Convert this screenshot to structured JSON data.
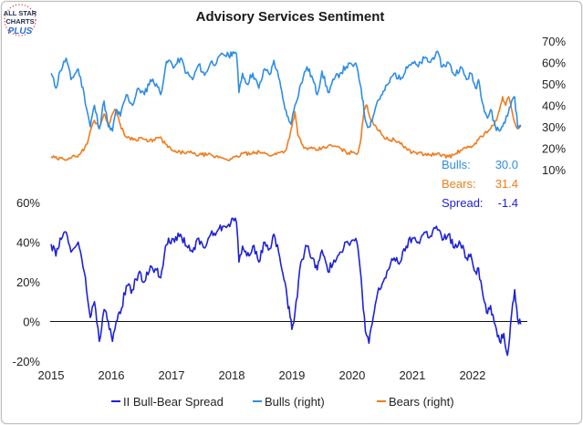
{
  "logo": {
    "line1": "ALL STAR",
    "line2": "CHARTS",
    "line3": "PLUS",
    "color_dark": "#1b2a4a",
    "color_accent": "#e0323c",
    "color_plus": "#2d6fd6"
  },
  "chart_data": {
    "type": "line",
    "title": "Advisory Services Sentiment",
    "colors": {
      "spread": "#1e22d6",
      "bulls": "#2e8de4",
      "bears": "#f07c1c"
    },
    "x_ticks": [
      "2015",
      "2016",
      "2017",
      "2018",
      "2019",
      "2020",
      "2021",
      "2022"
    ],
    "top_panel": {
      "axis": "right",
      "ylim": [
        10,
        70
      ],
      "y_ticks": [
        "70%",
        "60%",
        "50%",
        "40%",
        "30%",
        "20%",
        "10%"
      ],
      "bulls_anchor_points": [
        [
          2015.0,
          55
        ],
        [
          2015.08,
          48
        ],
        [
          2015.15,
          56
        ],
        [
          2015.25,
          62
        ],
        [
          2015.33,
          52
        ],
        [
          2015.45,
          57
        ],
        [
          2015.55,
          45
        ],
        [
          2015.65,
          30
        ],
        [
          2015.72,
          40
        ],
        [
          2015.8,
          29
        ],
        [
          2015.88,
          42
        ],
        [
          2015.95,
          30
        ],
        [
          2016.02,
          28
        ],
        [
          2016.08,
          38
        ],
        [
          2016.15,
          35
        ],
        [
          2016.25,
          45
        ],
        [
          2016.35,
          40
        ],
        [
          2016.45,
          48
        ],
        [
          2016.55,
          45
        ],
        [
          2016.65,
          52
        ],
        [
          2016.75,
          50
        ],
        [
          2016.82,
          45
        ],
        [
          2016.9,
          58
        ],
        [
          2016.95,
          61
        ],
        [
          2017.05,
          58
        ],
        [
          2017.15,
          62
        ],
        [
          2017.25,
          55
        ],
        [
          2017.35,
          52
        ],
        [
          2017.45,
          59
        ],
        [
          2017.55,
          54
        ],
        [
          2017.65,
          60
        ],
        [
          2017.75,
          60
        ],
        [
          2017.85,
          64
        ],
        [
          2017.95,
          63
        ],
        [
          2018.02,
          65
        ],
        [
          2018.08,
          64
        ],
        [
          2018.12,
          46
        ],
        [
          2018.18,
          55
        ],
        [
          2018.25,
          50
        ],
        [
          2018.35,
          55
        ],
        [
          2018.45,
          48
        ],
        [
          2018.55,
          57
        ],
        [
          2018.65,
          55
        ],
        [
          2018.7,
          61
        ],
        [
          2018.78,
          53
        ],
        [
          2018.85,
          43
        ],
        [
          2018.92,
          35
        ],
        [
          2018.97,
          32
        ],
        [
          2019.0,
          33
        ],
        [
          2019.05,
          40
        ],
        [
          2019.15,
          50
        ],
        [
          2019.25,
          58
        ],
        [
          2019.35,
          52
        ],
        [
          2019.42,
          45
        ],
        [
          2019.5,
          56
        ],
        [
          2019.6,
          46
        ],
        [
          2019.7,
          52
        ],
        [
          2019.8,
          55
        ],
        [
          2019.9,
          58
        ],
        [
          2020.0,
          59
        ],
        [
          2020.08,
          58
        ],
        [
          2020.15,
          48
        ],
        [
          2020.22,
          33
        ],
        [
          2020.28,
          30
        ],
        [
          2020.35,
          35
        ],
        [
          2020.42,
          42
        ],
        [
          2020.5,
          45
        ],
        [
          2020.6,
          50
        ],
        [
          2020.7,
          55
        ],
        [
          2020.8,
          52
        ],
        [
          2020.9,
          58
        ],
        [
          2021.0,
          60
        ],
        [
          2021.1,
          58
        ],
        [
          2021.2,
          62
        ],
        [
          2021.3,
          60
        ],
        [
          2021.4,
          65
        ],
        [
          2021.5,
          58
        ],
        [
          2021.6,
          60
        ],
        [
          2021.7,
          54
        ],
        [
          2021.8,
          58
        ],
        [
          2021.9,
          52
        ],
        [
          2021.97,
          55
        ],
        [
          2022.05,
          48
        ],
        [
          2022.1,
          52
        ],
        [
          2022.18,
          40
        ],
        [
          2022.25,
          34
        ],
        [
          2022.3,
          38
        ],
        [
          2022.38,
          30
        ],
        [
          2022.45,
          28
        ],
        [
          2022.52,
          32
        ],
        [
          2022.58,
          35
        ],
        [
          2022.65,
          42
        ],
        [
          2022.7,
          44
        ],
        [
          2022.75,
          30
        ],
        [
          2022.8,
          30
        ]
      ],
      "bears_anchor_points": [
        [
          2015.0,
          16
        ],
        [
          2015.1,
          15
        ],
        [
          2015.2,
          15
        ],
        [
          2015.3,
          15.5
        ],
        [
          2015.4,
          16
        ],
        [
          2015.5,
          18
        ],
        [
          2015.6,
          22
        ],
        [
          2015.65,
          28
        ],
        [
          2015.72,
          33
        ],
        [
          2015.8,
          30
        ],
        [
          2015.88,
          36
        ],
        [
          2015.95,
          31
        ],
        [
          2016.02,
          36
        ],
        [
          2016.08,
          38
        ],
        [
          2016.15,
          31
        ],
        [
          2016.22,
          26
        ],
        [
          2016.3,
          25
        ],
        [
          2016.4,
          24
        ],
        [
          2016.5,
          25
        ],
        [
          2016.6,
          23
        ],
        [
          2016.7,
          24
        ],
        [
          2016.8,
          25
        ],
        [
          2016.9,
          22
        ],
        [
          2017.0,
          19
        ],
        [
          2017.1,
          18
        ],
        [
          2017.2,
          18
        ],
        [
          2017.3,
          18
        ],
        [
          2017.4,
          17
        ],
        [
          2017.5,
          17
        ],
        [
          2017.6,
          17
        ],
        [
          2017.7,
          16
        ],
        [
          2017.8,
          16
        ],
        [
          2017.9,
          15
        ],
        [
          2018.0,
          15
        ],
        [
          2018.1,
          16
        ],
        [
          2018.2,
          18
        ],
        [
          2018.3,
          17
        ],
        [
          2018.4,
          18
        ],
        [
          2018.5,
          18
        ],
        [
          2018.6,
          17
        ],
        [
          2018.7,
          17
        ],
        [
          2018.8,
          18
        ],
        [
          2018.9,
          19
        ],
        [
          2019.0,
          30
        ],
        [
          2019.05,
          37
        ],
        [
          2019.1,
          26
        ],
        [
          2019.2,
          20
        ],
        [
          2019.3,
          20
        ],
        [
          2019.4,
          19
        ],
        [
          2019.5,
          20
        ],
        [
          2019.6,
          21
        ],
        [
          2019.7,
          21
        ],
        [
          2019.8,
          20
        ],
        [
          2019.9,
          18
        ],
        [
          2020.0,
          18
        ],
        [
          2020.1,
          18
        ],
        [
          2020.15,
          25
        ],
        [
          2020.2,
          38
        ],
        [
          2020.25,
          40
        ],
        [
          2020.3,
          34
        ],
        [
          2020.4,
          30
        ],
        [
          2020.5,
          26
        ],
        [
          2020.6,
          24
        ],
        [
          2020.7,
          24
        ],
        [
          2020.8,
          22
        ],
        [
          2020.9,
          20
        ],
        [
          2021.0,
          18
        ],
        [
          2021.1,
          18
        ],
        [
          2021.2,
          17
        ],
        [
          2021.3,
          17
        ],
        [
          2021.4,
          17
        ],
        [
          2021.5,
          17
        ],
        [
          2021.6,
          16
        ],
        [
          2021.7,
          17
        ],
        [
          2021.8,
          19
        ],
        [
          2021.9,
          20
        ],
        [
          2022.0,
          21
        ],
        [
          2022.1,
          24
        ],
        [
          2022.2,
          27
        ],
        [
          2022.3,
          29
        ],
        [
          2022.4,
          33
        ],
        [
          2022.45,
          38
        ],
        [
          2022.5,
          44
        ],
        [
          2022.55,
          40
        ],
        [
          2022.6,
          44
        ],
        [
          2022.65,
          38
        ],
        [
          2022.7,
          32
        ],
        [
          2022.75,
          29
        ],
        [
          2022.8,
          31
        ]
      ]
    },
    "bottom_panel": {
      "axis": "left",
      "ylim": [
        -20,
        60
      ],
      "y_ticks": [
        "60%",
        "40%",
        "20%",
        "0%",
        "(20%)"
      ],
      "spread_anchor_points": [
        [
          2015.0,
          39
        ],
        [
          2015.08,
          33
        ],
        [
          2015.15,
          42
        ],
        [
          2015.25,
          45
        ],
        [
          2015.33,
          35
        ],
        [
          2015.45,
          40
        ],
        [
          2015.55,
          25
        ],
        [
          2015.65,
          2
        ],
        [
          2015.72,
          10
        ],
        [
          2015.8,
          -10
        ],
        [
          2015.88,
          6
        ],
        [
          2015.95,
          0
        ],
        [
          2016.02,
          -10
        ],
        [
          2016.08,
          0
        ],
        [
          2016.15,
          4
        ],
        [
          2016.25,
          18
        ],
        [
          2016.35,
          16
        ],
        [
          2016.45,
          24
        ],
        [
          2016.55,
          20
        ],
        [
          2016.65,
          28
        ],
        [
          2016.75,
          26
        ],
        [
          2016.82,
          22
        ],
        [
          2016.9,
          38
        ],
        [
          2016.95,
          42
        ],
        [
          2017.05,
          40
        ],
        [
          2017.15,
          44
        ],
        [
          2017.25,
          38
        ],
        [
          2017.35,
          35
        ],
        [
          2017.45,
          42
        ],
        [
          2017.55,
          37
        ],
        [
          2017.65,
          44
        ],
        [
          2017.75,
          45
        ],
        [
          2017.85,
          48
        ],
        [
          2017.95,
          49
        ],
        [
          2018.02,
          52
        ],
        [
          2018.08,
          50
        ],
        [
          2018.12,
          30
        ],
        [
          2018.18,
          38
        ],
        [
          2018.25,
          33
        ],
        [
          2018.35,
          38
        ],
        [
          2018.45,
          30
        ],
        [
          2018.55,
          40
        ],
        [
          2018.65,
          37
        ],
        [
          2018.7,
          44
        ],
        [
          2018.78,
          35
        ],
        [
          2018.85,
          24
        ],
        [
          2018.92,
          12
        ],
        [
          2018.97,
          2
        ],
        [
          2019.0,
          -4
        ],
        [
          2019.05,
          4
        ],
        [
          2019.15,
          30
        ],
        [
          2019.25,
          38
        ],
        [
          2019.35,
          32
        ],
        [
          2019.42,
          26
        ],
        [
          2019.5,
          36
        ],
        [
          2019.6,
          25
        ],
        [
          2019.7,
          31
        ],
        [
          2019.8,
          35
        ],
        [
          2019.9,
          40
        ],
        [
          2020.0,
          41
        ],
        [
          2020.08,
          40
        ],
        [
          2020.15,
          22
        ],
        [
          2020.22,
          -5
        ],
        [
          2020.28,
          -11
        ],
        [
          2020.35,
          2
        ],
        [
          2020.42,
          14
        ],
        [
          2020.5,
          19
        ],
        [
          2020.6,
          26
        ],
        [
          2020.7,
          32
        ],
        [
          2020.8,
          30
        ],
        [
          2020.9,
          38
        ],
        [
          2021.0,
          42
        ],
        [
          2021.1,
          40
        ],
        [
          2021.2,
          45
        ],
        [
          2021.3,
          43
        ],
        [
          2021.4,
          48
        ],
        [
          2021.5,
          41
        ],
        [
          2021.6,
          44
        ],
        [
          2021.7,
          37
        ],
        [
          2021.8,
          39
        ],
        [
          2021.9,
          32
        ],
        [
          2021.97,
          34
        ],
        [
          2022.05,
          25
        ],
        [
          2022.1,
          27
        ],
        [
          2022.18,
          12
        ],
        [
          2022.25,
          4
        ],
        [
          2022.3,
          8
        ],
        [
          2022.38,
          -2
        ],
        [
          2022.45,
          -10
        ],
        [
          2022.52,
          -6
        ],
        [
          2022.58,
          -17
        ],
        [
          2022.65,
          4
        ],
        [
          2022.7,
          16
        ],
        [
          2022.75,
          1
        ],
        [
          2022.8,
          -1.4
        ]
      ]
    },
    "annotation": [
      {
        "label": "Bulls:",
        "value": "30.0",
        "series": "bulls"
      },
      {
        "label": "Bears:",
        "value": "31.4",
        "series": "bears"
      },
      {
        "label": "Spread:",
        "value": "-1.4",
        "series": "spread"
      }
    ],
    "legend": [
      {
        "label": "II Bull-Bear Spread",
        "series": "spread"
      },
      {
        "label": "Bulls (right)",
        "series": "bulls"
      },
      {
        "label": "Bears (right)",
        "series": "bears"
      }
    ]
  }
}
